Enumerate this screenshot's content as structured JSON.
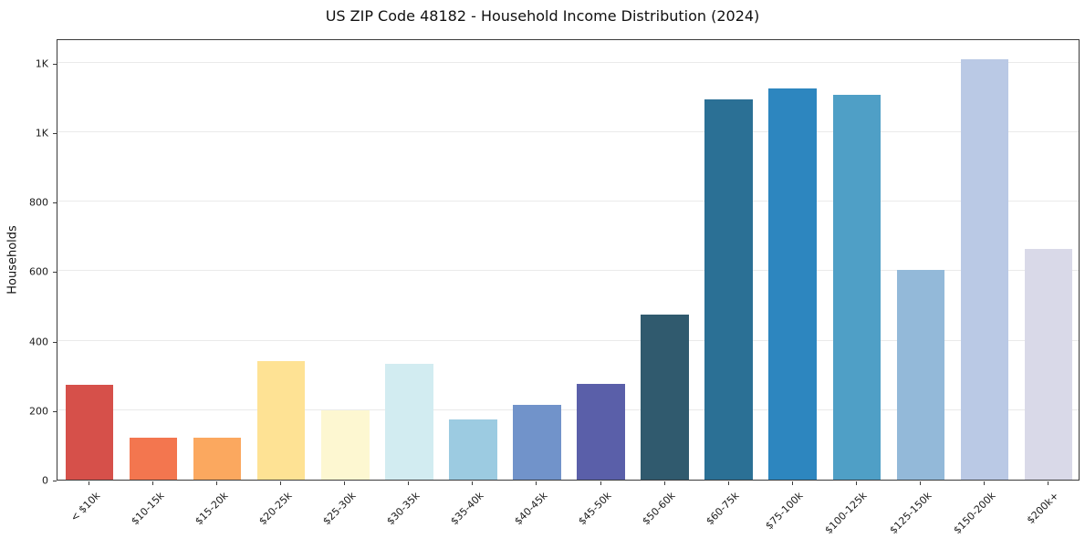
{
  "chart_data": {
    "type": "bar",
    "title": "US ZIP Code 48182 - Household Income Distribution (2024)",
    "ylabel": "Households",
    "xlabel": "",
    "categories": [
      "< $10k",
      "$10-15k",
      "$15-20k",
      "$20-25k",
      "$25-30k",
      "$30-35k",
      "$35-40k",
      "$40-45k",
      "$45-50k",
      "$50-60k",
      "$60-75k",
      "$75-100k",
      "$100-125k",
      "$125-150k",
      "$150-200k",
      "$200k+"
    ],
    "values": [
      273,
      121,
      120,
      341,
      200,
      332,
      172,
      214,
      276,
      476,
      1095,
      1125,
      1107,
      603,
      1210,
      665
    ],
    "bar_colors": [
      "#d6504a",
      "#f3764f",
      "#fba85f",
      "#fee294",
      "#fdf7d1",
      "#d2ecf1",
      "#9ccbe1",
      "#7193ca",
      "#5a5fa9",
      "#305a6e",
      "#2b7095",
      "#2d86bf",
      "#4f9fc6",
      "#93b9d9",
      "#bac9e5",
      "#d9d9e8"
    ],
    "ylim": [
      0,
      1270
    ],
    "yticks": {
      "values": [
        0,
        200,
        400,
        600,
        800,
        1000,
        1200
      ],
      "labels": [
        "0",
        "200",
        "400",
        "600",
        "800",
        "1K",
        "1K"
      ]
    },
    "grid": "horizontal",
    "grid_color": "#eaeaea",
    "axis_color": "#3a3a3a",
    "text_color": "#1a1a1a",
    "background": "#ffffff",
    "legend": "none"
  }
}
